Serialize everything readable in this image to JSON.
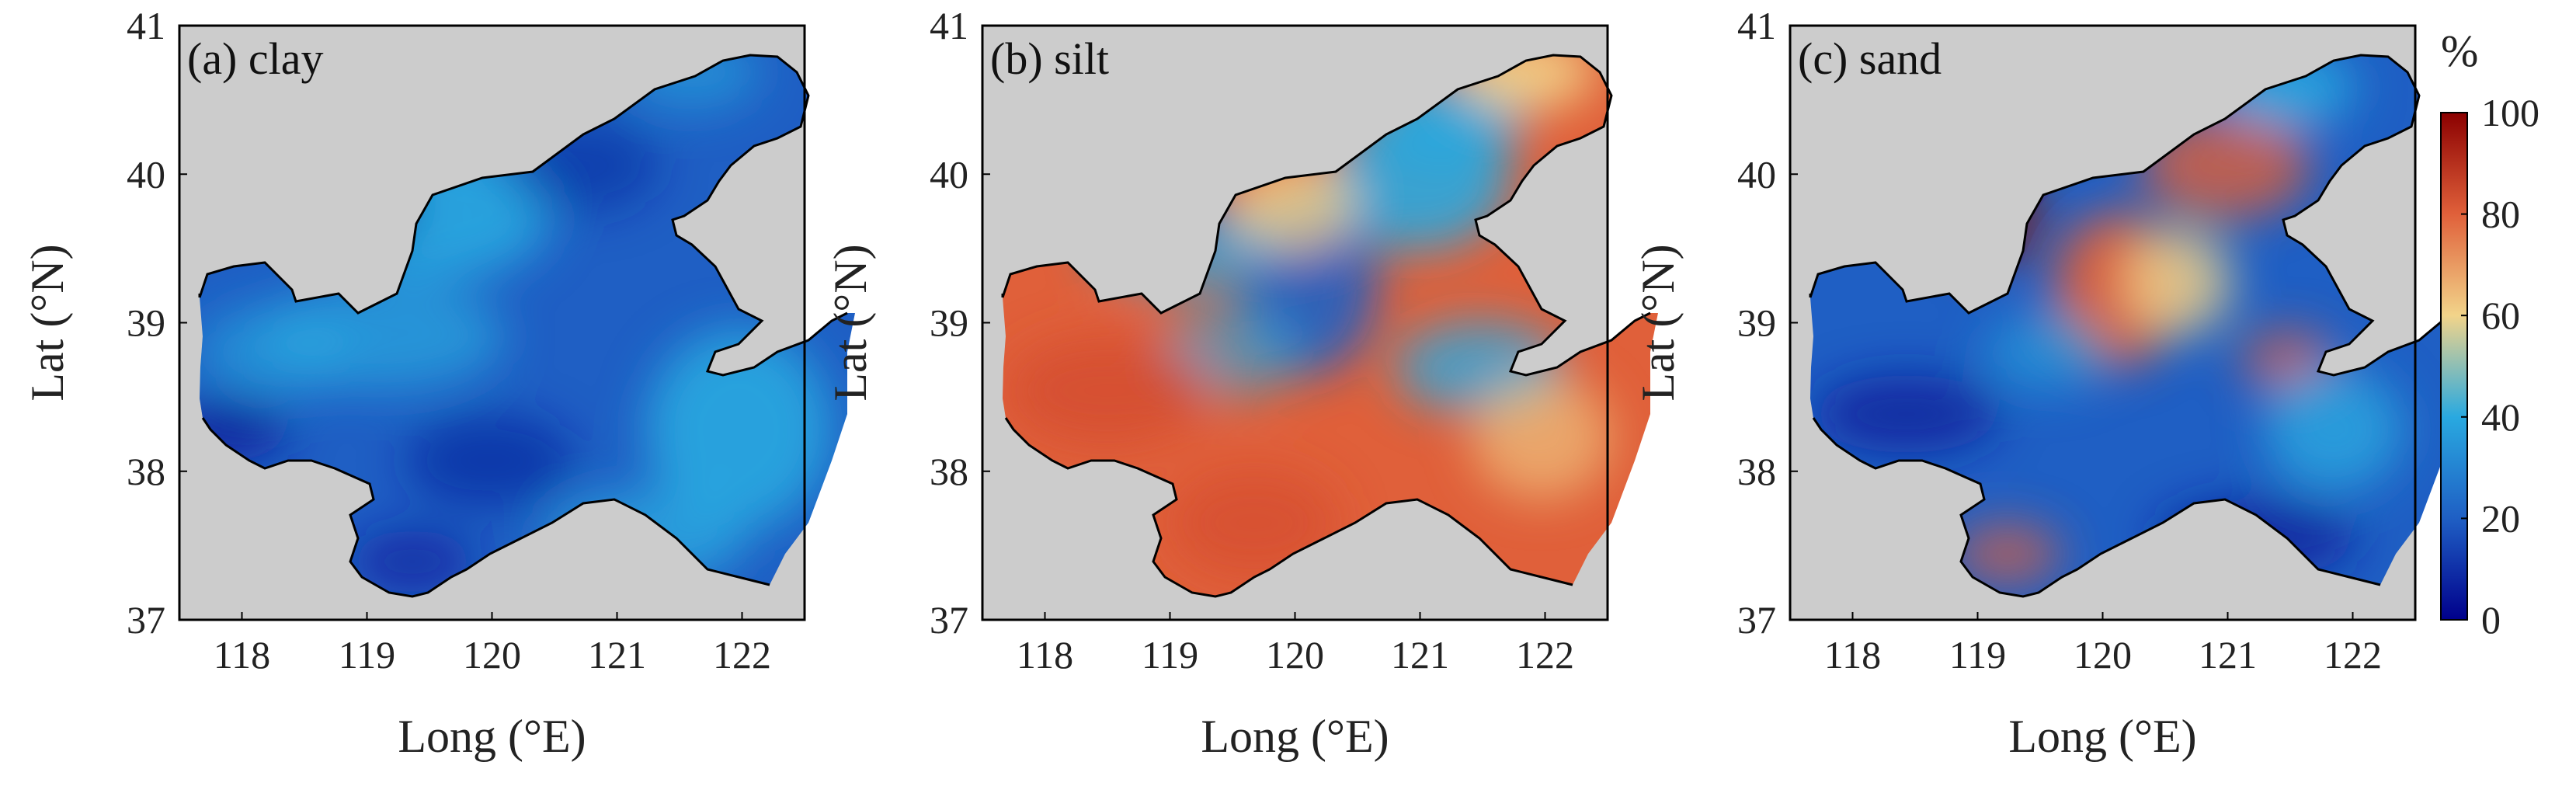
{
  "figure": {
    "panels": [
      {
        "id": "clay",
        "label": "(a) clay",
        "variable": "clay"
      },
      {
        "id": "silt",
        "label": "(b) silt",
        "variable": "silt"
      },
      {
        "id": "sand",
        "label": "(c) sand",
        "variable": "sand"
      }
    ],
    "map_extent": {
      "lon": [
        117.5,
        122.5
      ],
      "lat": [
        37,
        41
      ]
    },
    "lon_ticks": [
      "118",
      "119",
      "120",
      "121",
      "122"
    ],
    "lat_ticks": [
      "37",
      "38",
      "39",
      "40",
      "41"
    ],
    "xlabel": "Long (°E)",
    "ylabel": "Lat (°N)",
    "land_color": "#cccccc",
    "coast_color": "#000000"
  },
  "colorbar": {
    "unit": "%",
    "range": [
      0,
      100
    ],
    "ticks": [
      "0",
      "20",
      "40",
      "60",
      "80",
      "100"
    ],
    "colormap": [
      "#00008b",
      "#1f5fc4",
      "#29a9e0",
      "#f2d48a",
      "#e0603a",
      "#8b0000"
    ]
  }
}
